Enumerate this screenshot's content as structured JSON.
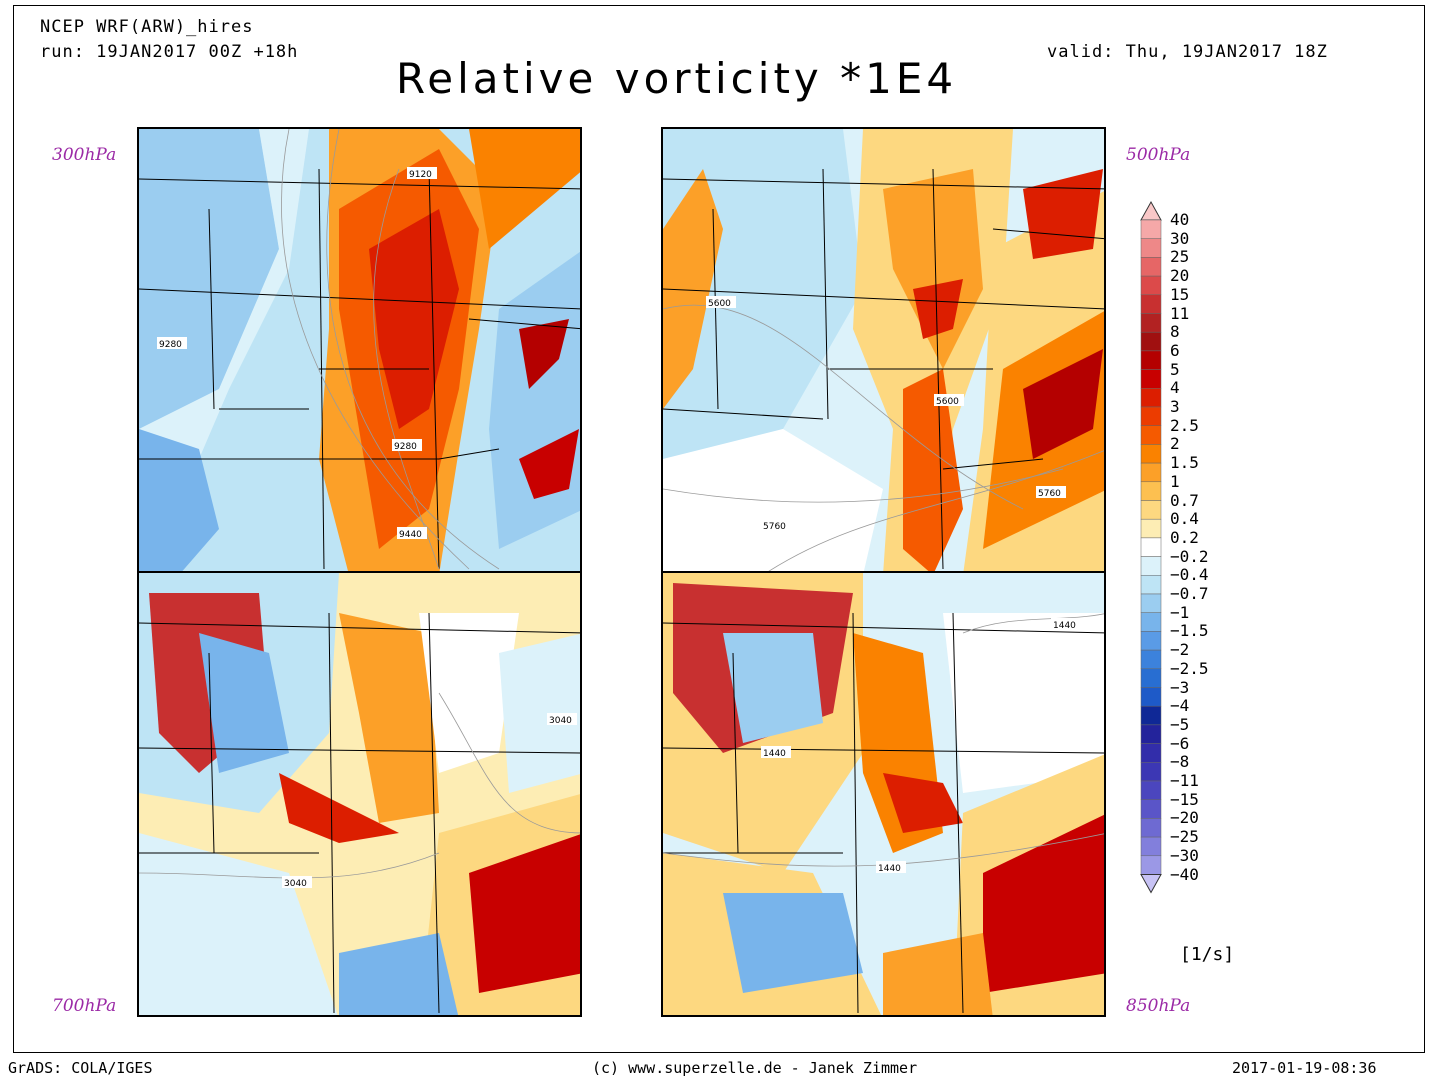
{
  "header": {
    "model": "NCEP WRF(ARW)_hires",
    "run": "run: 19JAN2017 00Z +18h",
    "valid": "valid: Thu, 19JAN2017 18Z",
    "title": "Relative vorticity *1E4"
  },
  "panels": [
    {
      "level": "300hPa",
      "contours": [
        "9120",
        "9280",
        "9280",
        "9440"
      ]
    },
    {
      "level": "500hPa",
      "contours": [
        "5600",
        "5600",
        "5760",
        "5760"
      ]
    },
    {
      "level": "700hPa",
      "contours": [
        "3040",
        "3040"
      ]
    },
    {
      "level": "850hPa",
      "contours": [
        "1440",
        "1440",
        "1440"
      ]
    }
  ],
  "colorbar": {
    "labels": [
      "40",
      "30",
      "25",
      "20",
      "15",
      "11",
      "8",
      "6",
      "5",
      "4",
      "3",
      "2.5",
      "2",
      "1.5",
      "1",
      "0.7",
      "0.4",
      "0.2",
      "−0.2",
      "−0.4",
      "−0.7",
      "−1",
      "−1.5",
      "−2",
      "−2.5",
      "−3",
      "−4",
      "−5",
      "−6",
      "−8",
      "−11",
      "−15",
      "−20",
      "−25",
      "−30",
      "−40"
    ],
    "colors": [
      "#f9c8c8",
      "#f5a8a8",
      "#ee8888",
      "#e66666",
      "#dc4a4a",
      "#c83030",
      "#b22222",
      "#a01010",
      "#b40000",
      "#c80000",
      "#dc1e00",
      "#ec3c00",
      "#f55a00",
      "#fa8200",
      "#fca028",
      "#fdc050",
      "#fdd880",
      "#fdedb4",
      "#ffffff",
      "#dcf2fa",
      "#bee4f5",
      "#9bcdf0",
      "#78b4eb",
      "#5a9be6",
      "#3c82dc",
      "#286ed2",
      "#1e5ac8",
      "#0f2896",
      "#23239b",
      "#322daa",
      "#3c37b4",
      "#4b46be",
      "#5a55c8",
      "#6e6ad2",
      "#827fdc",
      "#9b98e6",
      "#c8c3f5"
    ],
    "units": "[1/s]"
  },
  "footer": {
    "left": "GrADS: COLA/IGES",
    "center": "(c) www.superzelle.de - Janek Zimmer",
    "right": "2017-01-19-08:36"
  }
}
